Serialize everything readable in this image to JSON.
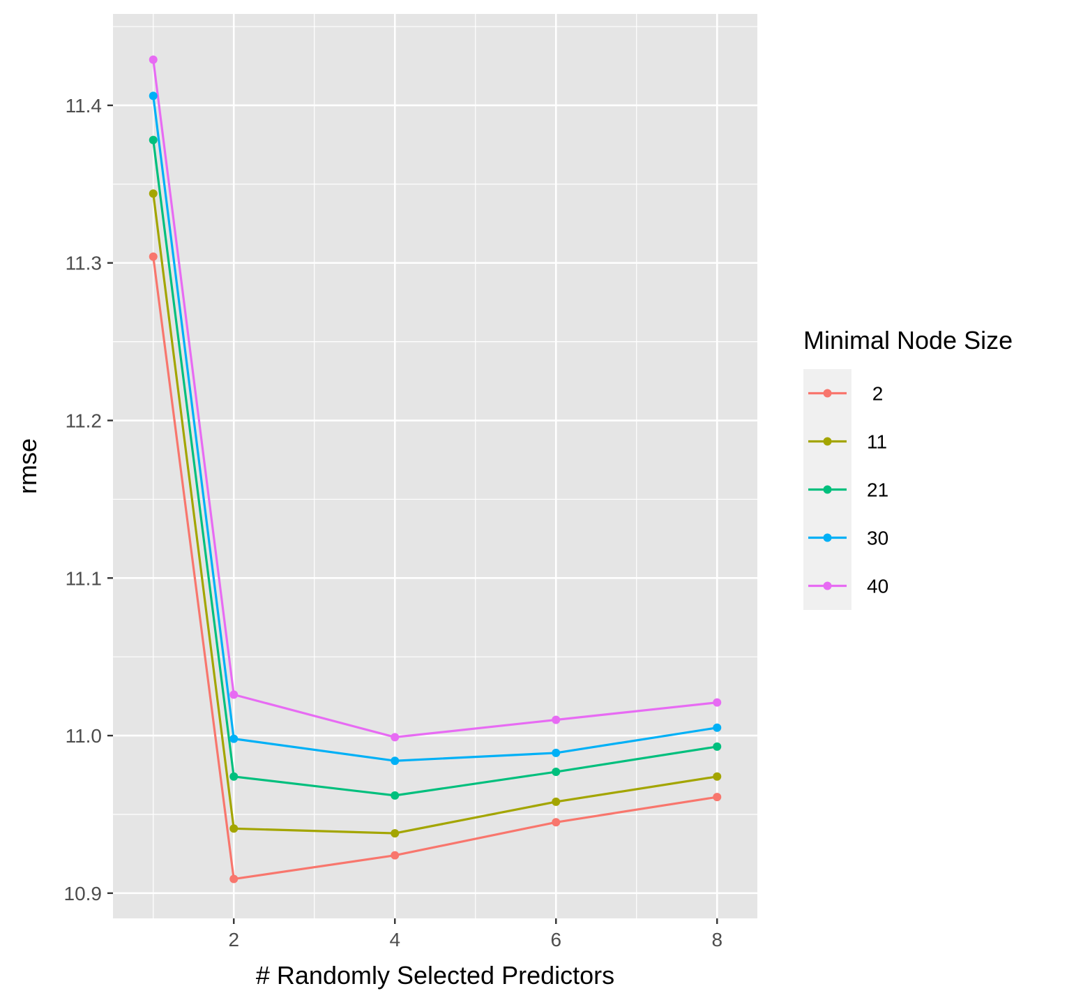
{
  "chart_data": {
    "type": "line",
    "title": "",
    "xlabel": "# Randomly Selected Predictors",
    "ylabel": "rmse",
    "x_ticks": [
      2,
      4,
      6,
      8
    ],
    "x_tick_labels": [
      "2",
      "4",
      "6",
      "8"
    ],
    "y_ticks": [
      10.9,
      11.0,
      11.1,
      11.2,
      11.3,
      11.4
    ],
    "y_tick_labels": [
      "10.9",
      "11.0",
      "11.1",
      "11.2",
      "11.3",
      "11.4"
    ],
    "xlim": [
      0.5,
      8.5
    ],
    "ylim": [
      10.884,
      11.458
    ],
    "grid": true,
    "legend": {
      "title": "Minimal Node Size",
      "position": "right"
    },
    "x": [
      1,
      2,
      4,
      6,
      8
    ],
    "series": [
      {
        "name": " 2",
        "color": "#F8766D",
        "values": [
          11.304,
          10.909,
          10.924,
          10.945,
          10.961
        ]
      },
      {
        "name": "11",
        "color": "#A3A500",
        "values": [
          11.344,
          10.941,
          10.938,
          10.958,
          10.974
        ]
      },
      {
        "name": "21",
        "color": "#00BF7D",
        "values": [
          11.378,
          10.974,
          10.962,
          10.977,
          10.993
        ]
      },
      {
        "name": "30",
        "color": "#00B0F6",
        "values": [
          11.406,
          10.998,
          10.984,
          10.989,
          11.005
        ]
      },
      {
        "name": "40",
        "color": "#E76BF3",
        "values": [
          11.429,
          11.026,
          10.999,
          11.01,
          11.021
        ]
      }
    ]
  }
}
